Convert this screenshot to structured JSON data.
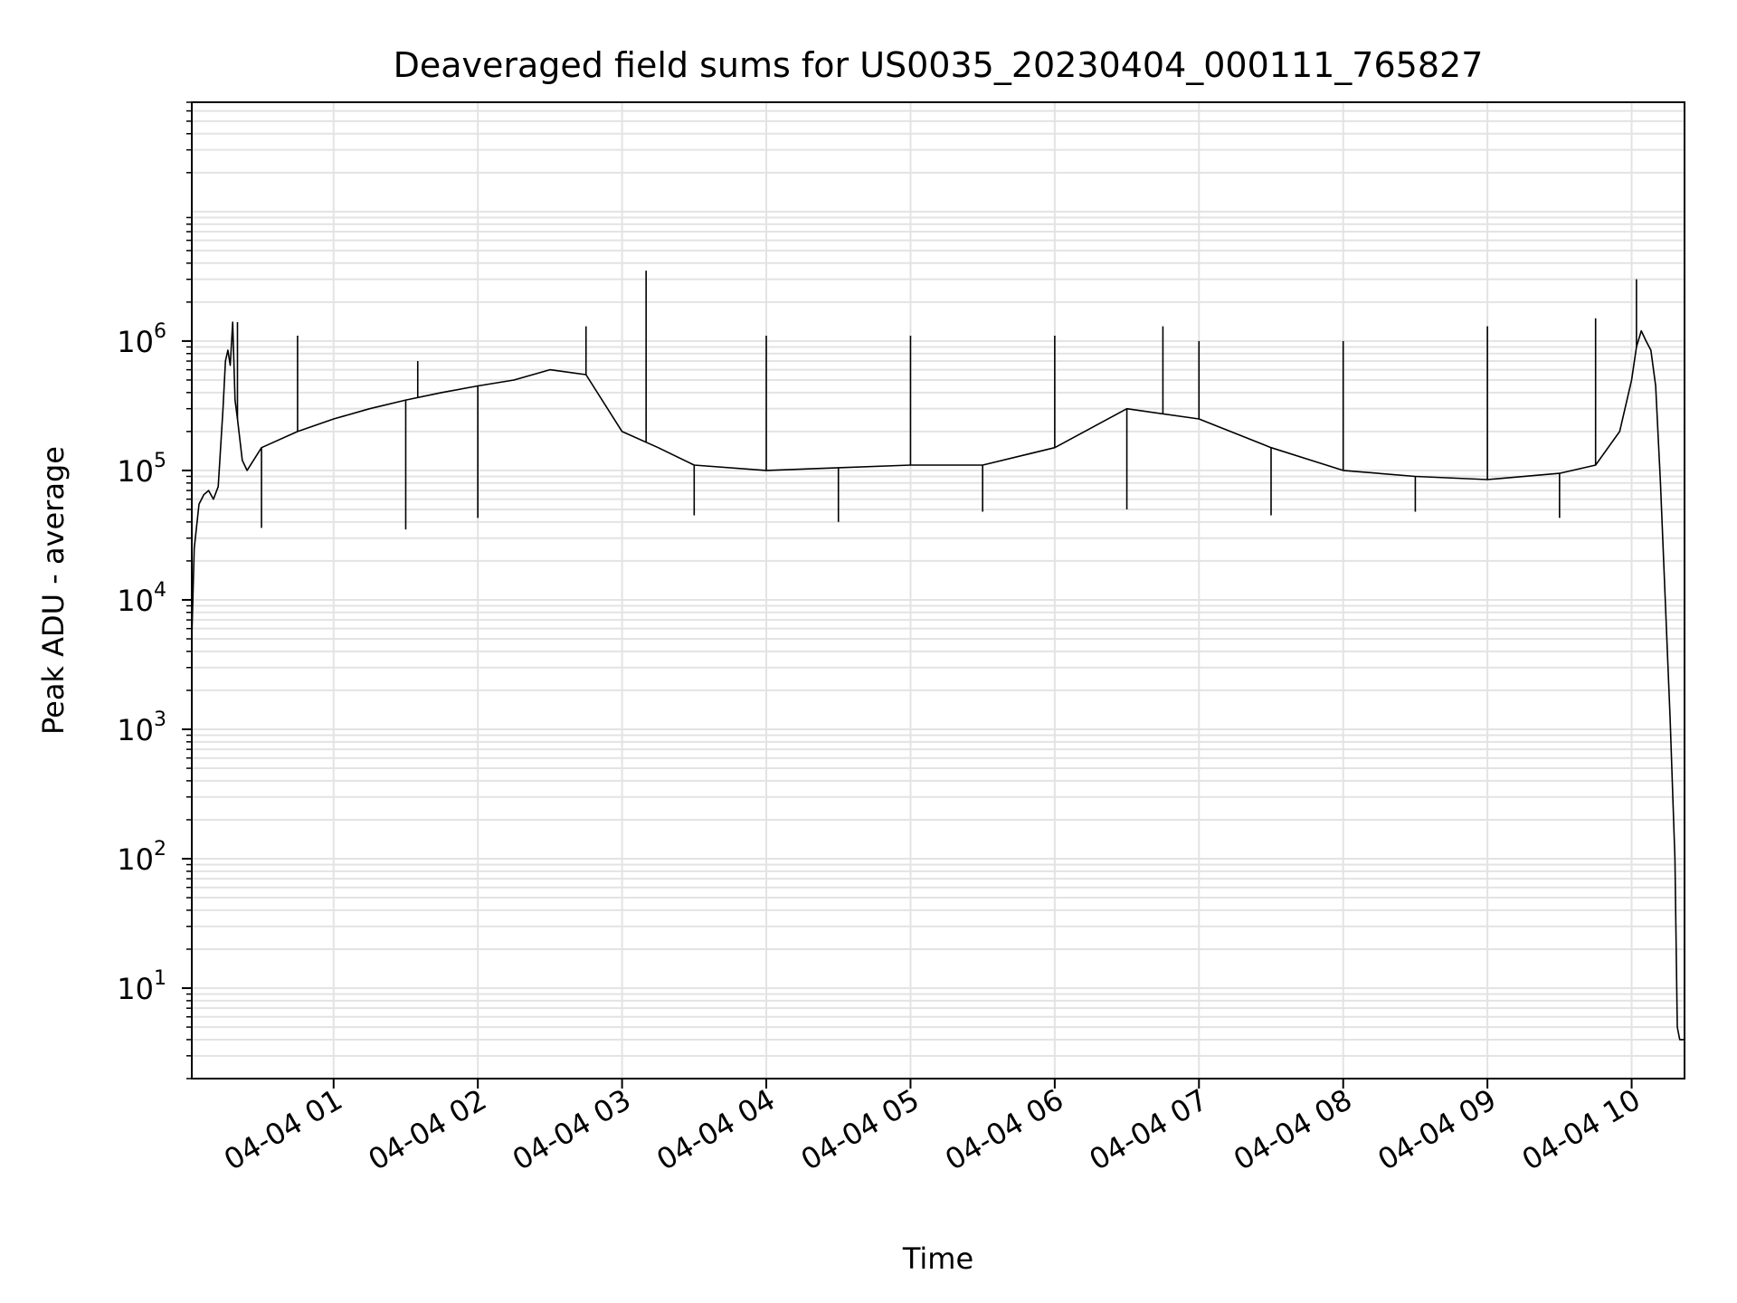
{
  "chart_data": {
    "type": "line",
    "title": "Deaveraged field sums for US0035_20230404_000111_765827",
    "xlabel": "Time",
    "ylabel": "Peak ADU - average",
    "yscale": "log",
    "ylim": [
      2,
      70000000
    ],
    "xlim": [
      "2023-04-04 00:01",
      "2023-04-04 10:22"
    ],
    "grid": true,
    "x_ticks": [
      {
        "value": "2023-04-04 01:00",
        "label": "04-04 01"
      },
      {
        "value": "2023-04-04 02:00",
        "label": "04-04 02"
      },
      {
        "value": "2023-04-04 03:00",
        "label": "04-04 03"
      },
      {
        "value": "2023-04-04 04:00",
        "label": "04-04 04"
      },
      {
        "value": "2023-04-04 05:00",
        "label": "04-04 05"
      },
      {
        "value": "2023-04-04 06:00",
        "label": "04-04 06"
      },
      {
        "value": "2023-04-04 07:00",
        "label": "04-04 07"
      },
      {
        "value": "2023-04-04 08:00",
        "label": "04-04 08"
      },
      {
        "value": "2023-04-04 09:00",
        "label": "04-04 09"
      },
      {
        "value": "2023-04-04 10:00",
        "label": "04-04 10"
      }
    ],
    "y_ticks": [
      {
        "value": 10,
        "base": "10",
        "exp": "1"
      },
      {
        "value": 100,
        "base": "10",
        "exp": "2"
      },
      {
        "value": 1000,
        "base": "10",
        "exp": "3"
      },
      {
        "value": 10000,
        "base": "10",
        "exp": "4"
      },
      {
        "value": 100000,
        "base": "10",
        "exp": "5"
      },
      {
        "value": 1000000,
        "base": "10",
        "exp": "6"
      }
    ],
    "series": [
      {
        "color": "#000000",
        "x": [
          "2023-04-04 00:01",
          "2023-04-04 00:02",
          "2023-04-04 00:04",
          "2023-04-04 00:06",
          "2023-04-04 00:08",
          "2023-04-04 00:10",
          "2023-04-04 00:12",
          "2023-04-04 00:14",
          "2023-04-04 00:15",
          "2023-04-04 00:16",
          "2023-04-04 00:17",
          "2023-04-04 00:18",
          "2023-04-04 00:19",
          "2023-04-04 00:20",
          "2023-04-04 00:22",
          "2023-04-04 00:24",
          "2023-04-04 00:30",
          "2023-04-04 00:45",
          "2023-04-04 01:00",
          "2023-04-04 01:15",
          "2023-04-04 01:30",
          "2023-04-04 01:45",
          "2023-04-04 02:00",
          "2023-04-04 02:15",
          "2023-04-04 02:30",
          "2023-04-04 02:45",
          "2023-04-04 03:00",
          "2023-04-04 03:15",
          "2023-04-04 03:30",
          "2023-04-04 04:00",
          "2023-04-04 04:30",
          "2023-04-04 05:00",
          "2023-04-04 05:30",
          "2023-04-04 06:00",
          "2023-04-04 06:30",
          "2023-04-04 07:00",
          "2023-04-04 07:30",
          "2023-04-04 08:00",
          "2023-04-04 08:30",
          "2023-04-04 09:00",
          "2023-04-04 09:30",
          "2023-04-04 09:45",
          "2023-04-04 09:55",
          "2023-04-04 10:00",
          "2023-04-04 10:02",
          "2023-04-04 10:04",
          "2023-04-04 10:06",
          "2023-04-04 10:08",
          "2023-04-04 10:10",
          "2023-04-04 10:12",
          "2023-04-04 10:14",
          "2023-04-04 10:16",
          "2023-04-04 10:18",
          "2023-04-04 10:19",
          "2023-04-04 10:20",
          "2023-04-04 10:21",
          "2023-04-04 10:22"
        ],
        "y": [
          5000,
          25000,
          55000,
          65000,
          70000,
          60000,
          75000,
          300000,
          700000,
          850000,
          650000,
          1400000,
          350000,
          250000,
          120000,
          100000,
          150000,
          200000,
          250000,
          300000,
          350000,
          400000,
          450000,
          500000,
          600000,
          550000,
          200000,
          150000,
          110000,
          100000,
          105000,
          110000,
          110000,
          150000,
          300000,
          250000,
          150000,
          100000,
          90000,
          85000,
          95000,
          110000,
          200000,
          500000,
          900000,
          1200000,
          1000000,
          850000,
          450000,
          80000,
          10000,
          1200,
          100,
          5,
          4,
          4,
          4
        ]
      }
    ],
    "spikes": {
      "x": [
        "2023-04-04 00:20",
        "2023-04-04 00:45",
        "2023-04-04 01:35",
        "2023-04-04 02:45",
        "2023-04-04 03:10",
        "2023-04-04 04:00",
        "2023-04-04 05:00",
        "2023-04-04 06:00",
        "2023-04-04 06:45",
        "2023-04-04 07:00",
        "2023-04-04 08:00",
        "2023-04-04 09:00",
        "2023-04-04 09:45",
        "2023-04-04 10:02"
      ],
      "y": [
        1400000,
        1100000,
        700000,
        1300000,
        3500000,
        1100000,
        1100000,
        1100000,
        1300000,
        1000000,
        1000000,
        1300000,
        1500000,
        3000000
      ]
    },
    "dips": {
      "x": [
        "2023-04-04 00:30",
        "2023-04-04 01:30",
        "2023-04-04 02:00",
        "2023-04-04 03:30",
        "2023-04-04 04:30",
        "2023-04-04 05:30",
        "2023-04-04 06:30",
        "2023-04-04 07:30",
        "2023-04-04 08:30",
        "2023-04-04 09:30"
      ],
      "y": [
        36000,
        35000,
        43000,
        45000,
        40000,
        48000,
        50000,
        45000,
        48000,
        43000
      ]
    }
  }
}
